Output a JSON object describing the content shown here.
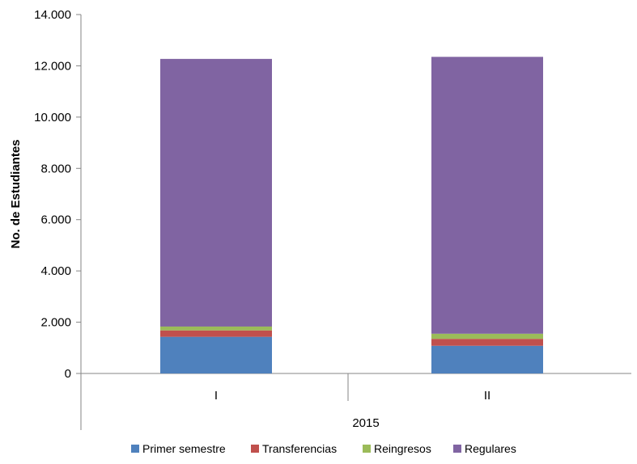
{
  "chart_data": {
    "type": "bar",
    "stacked": true,
    "categories": [
      "I",
      "II"
    ],
    "group_label": "2015",
    "ylabel": "No. de Estudiantes",
    "ylim": [
      0,
      14000
    ],
    "yticks": [
      0,
      2000,
      4000,
      6000,
      8000,
      10000,
      12000,
      14000
    ],
    "ytick_labels": [
      "0",
      "2.000",
      "4.000",
      "6.000",
      "8.000",
      "10.000",
      "12.000",
      "14.000"
    ],
    "grid": false,
    "legend_position": "bottom",
    "series": [
      {
        "name": "Primer semestre",
        "color": "#4F81BD",
        "values": [
          1430,
          1080
        ]
      },
      {
        "name": "Transferencias",
        "color": "#C0504D",
        "values": [
          250,
          270
        ]
      },
      {
        "name": "Reingresos",
        "color": "#9BBB59",
        "values": [
          150,
          200
        ]
      },
      {
        "name": "Regulares",
        "color": "#8064A2",
        "values": [
          10440,
          10800
        ]
      }
    ]
  }
}
